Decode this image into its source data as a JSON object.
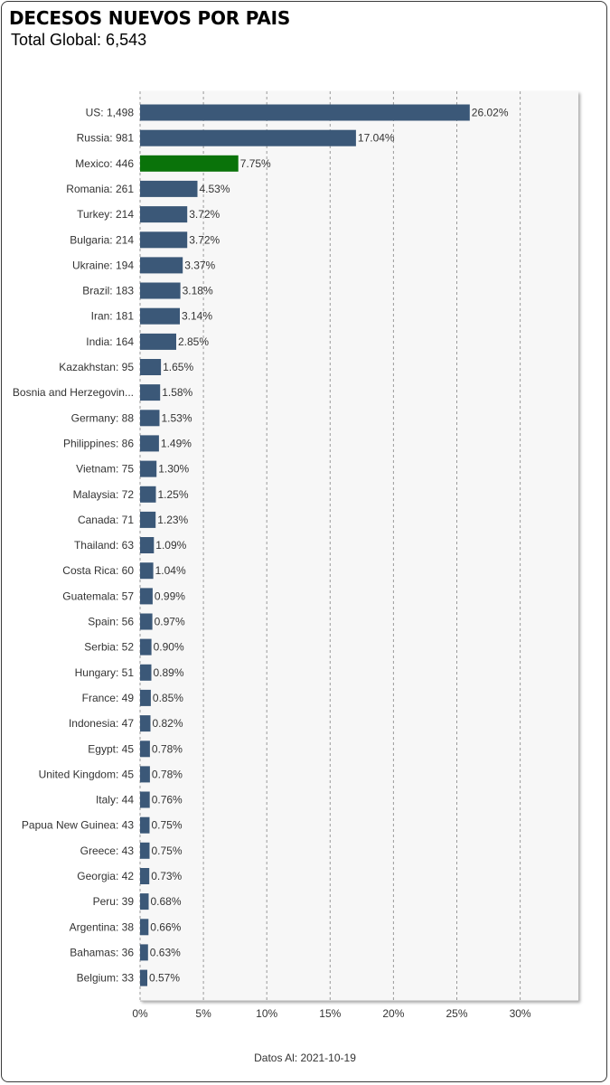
{
  "title": "DECESOS NUEVOS POR PAIS",
  "subtitle": "Total Global: 6,543",
  "footer": "Datos Al: 2021-10-19",
  "colors": {
    "bar": "#3b5878",
    "highlight": "#0a730a",
    "plot_bg": "#f7f7f7"
  },
  "chart_data": {
    "type": "bar",
    "orientation": "horizontal",
    "title": "DECESOS NUEVOS POR PAIS",
    "subtitle": "Total Global: 6,543",
    "xlim": [
      0,
      35
    ],
    "xticks": [
      0,
      5,
      10,
      15,
      20,
      25,
      30
    ],
    "xtick_labels": [
      "0%",
      "5%",
      "10%",
      "15%",
      "20%",
      "25%",
      "30%"
    ],
    "grid": true,
    "highlight": "Mexico",
    "category_labels": [
      "US:  1,498",
      "Russia:  981",
      "Mexico:  446",
      "Romania:  261",
      "Turkey:  214",
      "Bulgaria:  214",
      "Ukraine:  194",
      "Brazil:  183",
      "Iran:  181",
      "India:  164",
      "Kazakhstan:  95",
      "Bosnia and Herzegovin...",
      "Germany:  88",
      "Philippines:  86",
      "Vietnam:  75",
      "Malaysia:  72",
      "Canada:  71",
      "Thailand:  63",
      "Costa Rica:  60",
      "Guatemala:  57",
      "Spain:  56",
      "Serbia:  52",
      "Hungary:  51",
      "France:  49",
      "Indonesia:  47",
      "Egypt:  45",
      "United Kingdom:  45",
      "Italy:  44",
      "Papua New Guinea:  43",
      "Greece:  43",
      "Georgia:  42",
      "Peru:  39",
      "Argentina:  38",
      "Bahamas:  36",
      "Belgium:  33"
    ],
    "counts": [
      1498,
      981,
      446,
      261,
      214,
      214,
      194,
      183,
      181,
      164,
      95,
      null,
      88,
      86,
      75,
      72,
      71,
      63,
      60,
      57,
      56,
      52,
      51,
      49,
      47,
      45,
      45,
      44,
      43,
      43,
      42,
      39,
      38,
      36,
      33
    ],
    "values": [
      26.02,
      17.04,
      7.75,
      4.53,
      3.72,
      3.72,
      3.37,
      3.18,
      3.14,
      2.85,
      1.65,
      1.58,
      1.53,
      1.49,
      1.3,
      1.25,
      1.23,
      1.09,
      1.04,
      0.99,
      0.97,
      0.9,
      0.89,
      0.85,
      0.82,
      0.78,
      0.78,
      0.76,
      0.75,
      0.75,
      0.73,
      0.68,
      0.66,
      0.63,
      0.57
    ],
    "value_labels": [
      "26.02%",
      "17.04%",
      "7.75%",
      "4.53%",
      "3.72%",
      "3.72%",
      "3.37%",
      "3.18%",
      "3.14%",
      "2.85%",
      "1.65%",
      "1.58%",
      "1.53%",
      "1.49%",
      "1.30%",
      "1.25%",
      "1.23%",
      "1.09%",
      "1.04%",
      "0.99%",
      "0.97%",
      "0.90%",
      "0.89%",
      "0.85%",
      "0.82%",
      "0.78%",
      "0.78%",
      "0.76%",
      "0.75%",
      "0.75%",
      "0.73%",
      "0.68%",
      "0.66%",
      "0.63%",
      "0.57%"
    ]
  }
}
